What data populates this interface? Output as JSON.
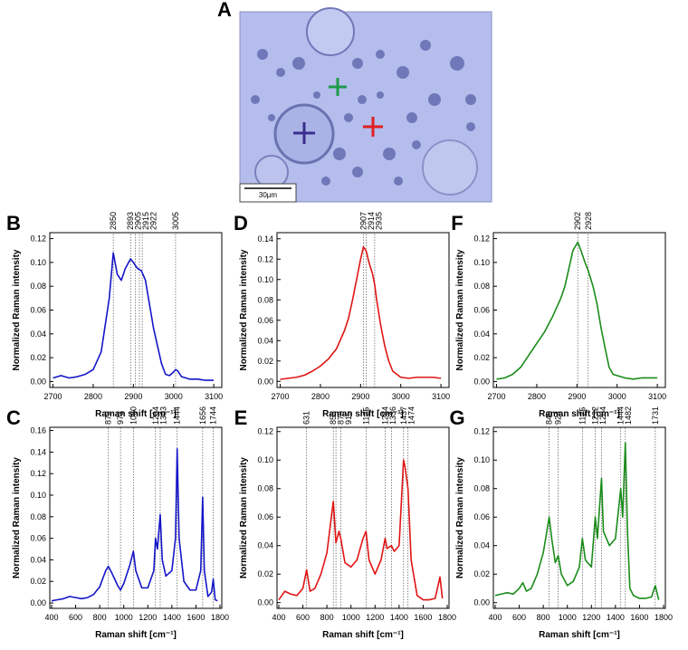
{
  "image": {
    "label": "A",
    "scale_bar": "30μm"
  },
  "chart_data": [
    {
      "type": "line",
      "panel": "B",
      "color": "#1515c8",
      "xlabel": "Raman shift [cm⁻¹]",
      "ylabel": "Normalized Raman intensity",
      "xlim": [
        2692,
        3120
      ],
      "ylim": [
        -0.005,
        0.125
      ],
      "xticks": [
        2700,
        2800,
        2900,
        3000,
        3100
      ],
      "yticks": [
        {
          "value": 0,
          "label": "0.00"
        },
        {
          "value": 0.02,
          "label": "0.02"
        },
        {
          "value": 0.04,
          "label": "0.04"
        },
        {
          "value": 0.06,
          "label": "0.06"
        },
        {
          "value": 0.08,
          "label": "0.08"
        },
        {
          "value": 0.1,
          "label": "0.10"
        },
        {
          "value": 0.12,
          "label": "0.12"
        }
      ],
      "peaks": [
        2850,
        2893,
        2905,
        2915,
        2922,
        3005
      ],
      "x": [
        2700,
        2720,
        2740,
        2760,
        2780,
        2800,
        2820,
        2840,
        2850,
        2860,
        2870,
        2880,
        2893,
        2900,
        2910,
        2920,
        2930,
        2940,
        2950,
        2960,
        2970,
        2980,
        2990,
        3000,
        3005,
        3010,
        3020,
        3040,
        3060,
        3080,
        3100
      ],
      "values": [
        0.003,
        0.005,
        0.003,
        0.004,
        0.006,
        0.01,
        0.025,
        0.07,
        0.108,
        0.09,
        0.085,
        0.095,
        0.103,
        0.1,
        0.095,
        0.093,
        0.085,
        0.065,
        0.045,
        0.03,
        0.015,
        0.006,
        0.005,
        0.008,
        0.01,
        0.009,
        0.004,
        0.002,
        0.002,
        0.001,
        0.001
      ]
    },
    {
      "type": "line",
      "panel": "D",
      "color": "#e01515",
      "xlabel": "Raman shift [cm⁻¹]",
      "ylabel": "Normalized Raman intensity",
      "xlim": [
        2692,
        3120
      ],
      "ylim": [
        -0.006,
        0.146
      ],
      "xticks": [
        2700,
        2800,
        2900,
        3000,
        3100
      ],
      "yticks": [
        {
          "value": 0,
          "label": "0.00"
        },
        {
          "value": 0.02,
          "label": "0.02"
        },
        {
          "value": 0.04,
          "label": "0.04"
        },
        {
          "value": 0.06,
          "label": "0.06"
        },
        {
          "value": 0.08,
          "label": "0.08"
        },
        {
          "value": 0.1,
          "label": "0.10"
        },
        {
          "value": 0.12,
          "label": "0.12"
        },
        {
          "value": 0.14,
          "label": "0.14"
        }
      ],
      "peaks": [
        2907,
        2914,
        2935
      ],
      "x": [
        2700,
        2720,
        2740,
        2760,
        2780,
        2800,
        2820,
        2840,
        2860,
        2870,
        2880,
        2890,
        2900,
        2907,
        2914,
        2920,
        2930,
        2935,
        2940,
        2950,
        2960,
        2970,
        2980,
        3000,
        3020,
        3040,
        3060,
        3080,
        3100
      ],
      "values": [
        0.002,
        0.003,
        0.004,
        0.006,
        0.01,
        0.015,
        0.022,
        0.032,
        0.05,
        0.062,
        0.08,
        0.1,
        0.12,
        0.132,
        0.128,
        0.118,
        0.105,
        0.095,
        0.08,
        0.055,
        0.035,
        0.02,
        0.01,
        0.004,
        0.003,
        0.004,
        0.004,
        0.004,
        0.003
      ]
    },
    {
      "type": "line",
      "panel": "F",
      "color": "#1a8c1a",
      "xlabel": "Raman shift [cm⁻¹]",
      "ylabel": "Normalized Raman intensity",
      "xlim": [
        2692,
        3120
      ],
      "ylim": [
        -0.005,
        0.125
      ],
      "xticks": [
        2700,
        2800,
        2900,
        3000,
        3100
      ],
      "yticks": [
        {
          "value": 0,
          "label": "0.00"
        },
        {
          "value": 0.02,
          "label": "0.02"
        },
        {
          "value": 0.04,
          "label": "0.04"
        },
        {
          "value": 0.06,
          "label": "0.06"
        },
        {
          "value": 0.08,
          "label": "0.08"
        },
        {
          "value": 0.1,
          "label": "0.10"
        },
        {
          "value": 0.12,
          "label": "0.12"
        }
      ],
      "peaks": [
        2902,
        2928
      ],
      "x": [
        2700,
        2720,
        2740,
        2760,
        2780,
        2800,
        2820,
        2840,
        2860,
        2870,
        2880,
        2890,
        2902,
        2910,
        2920,
        2928,
        2940,
        2950,
        2960,
        2970,
        2980,
        2990,
        3000,
        3020,
        3040,
        3060,
        3080,
        3100
      ],
      "values": [
        0.002,
        0.003,
        0.006,
        0.012,
        0.022,
        0.032,
        0.042,
        0.055,
        0.07,
        0.08,
        0.095,
        0.11,
        0.117,
        0.11,
        0.1,
        0.093,
        0.08,
        0.065,
        0.045,
        0.028,
        0.012,
        0.006,
        0.005,
        0.003,
        0.002,
        0.003,
        0.003,
        0.003
      ]
    },
    {
      "type": "line",
      "panel": "C",
      "color": "#1515c8",
      "xlabel": "Raman shift [cm⁻¹]",
      "ylabel": "Normalized Raman intensity",
      "xlim": [
        385,
        1815
      ],
      "ylim": [
        -0.005,
        0.163
      ],
      "xticks": [
        400,
        600,
        800,
        1000,
        1200,
        1400,
        1600,
        1800
      ],
      "yticks": [
        {
          "value": 0,
          "label": "0.00"
        },
        {
          "value": 0.02,
          "label": "0.02"
        },
        {
          "value": 0.04,
          "label": "0.04"
        },
        {
          "value": 0.06,
          "label": "0.06"
        },
        {
          "value": 0.08,
          "label": "0.08"
        },
        {
          "value": 0.1,
          "label": "0.10"
        },
        {
          "value": 0.12,
          "label": "0.12"
        },
        {
          "value": 0.14,
          "label": "0.14"
        },
        {
          "value": 0.16,
          "label": "0.16"
        }
      ],
      "peaks": [
        872,
        973,
        1080,
        1264,
        1303,
        1444,
        1656,
        1744
      ],
      "x": [
        400,
        450,
        500,
        550,
        600,
        650,
        700,
        750,
        800,
        850,
        872,
        900,
        950,
        973,
        1000,
        1050,
        1080,
        1100,
        1150,
        1200,
        1250,
        1264,
        1280,
        1303,
        1320,
        1350,
        1400,
        1430,
        1444,
        1460,
        1500,
        1550,
        1600,
        1640,
        1656,
        1670,
        1700,
        1730,
        1744,
        1760,
        1780
      ],
      "values": [
        0.002,
        0.003,
        0.004,
        0.006,
        0.005,
        0.004,
        0.005,
        0.008,
        0.015,
        0.03,
        0.034,
        0.028,
        0.016,
        0.012,
        0.018,
        0.035,
        0.048,
        0.03,
        0.014,
        0.014,
        0.03,
        0.06,
        0.05,
        0.082,
        0.04,
        0.025,
        0.03,
        0.06,
        0.143,
        0.06,
        0.02,
        0.012,
        0.012,
        0.03,
        0.098,
        0.03,
        0.006,
        0.01,
        0.022,
        0.003,
        0.002
      ]
    },
    {
      "type": "line",
      "panel": "E",
      "color": "#e01515",
      "xlabel": "Raman shift [cm⁻¹]",
      "ylabel": "Normalized Raman intensity",
      "xlim": [
        385,
        1815
      ],
      "ylim": [
        -0.004,
        0.123
      ],
      "xticks": [
        400,
        600,
        800,
        1000,
        1200,
        1400,
        1600,
        1800
      ],
      "yticks": [
        {
          "value": 0,
          "label": "0.00"
        },
        {
          "value": 0.02,
          "label": "0.02"
        },
        {
          "value": 0.04,
          "label": "0.04"
        },
        {
          "value": 0.06,
          "label": "0.06"
        },
        {
          "value": 0.08,
          "label": "0.08"
        },
        {
          "value": 0.1,
          "label": "0.10"
        },
        {
          "value": 0.12,
          "label": "0.12"
        }
      ],
      "peaks": [
        631,
        853,
        875,
        915,
        1125,
        1284,
        1336,
        1437,
        1474
      ],
      "x": [
        400,
        450,
        500,
        550,
        600,
        631,
        660,
        700,
        750,
        800,
        853,
        875,
        900,
        915,
        950,
        1000,
        1050,
        1100,
        1125,
        1150,
        1200,
        1250,
        1284,
        1300,
        1336,
        1360,
        1400,
        1437,
        1450,
        1474,
        1500,
        1550,
        1600,
        1650,
        1700,
        1740,
        1760
      ],
      "values": [
        0.002,
        0.008,
        0.006,
        0.005,
        0.01,
        0.023,
        0.008,
        0.01,
        0.02,
        0.035,
        0.071,
        0.042,
        0.05,
        0.045,
        0.028,
        0.025,
        0.03,
        0.045,
        0.05,
        0.03,
        0.02,
        0.03,
        0.045,
        0.038,
        0.04,
        0.036,
        0.04,
        0.1,
        0.095,
        0.08,
        0.03,
        0.005,
        0.002,
        0.002,
        0.003,
        0.018,
        0.003
      ]
    },
    {
      "type": "line",
      "panel": "G",
      "color": "#1a8c1a",
      "xlabel": "Raman shift [cm⁻¹]",
      "ylabel": "Normalized Raman intensity",
      "xlim": [
        385,
        1815
      ],
      "ylim": [
        -0.004,
        0.123
      ],
      "xticks": [
        400,
        600,
        800,
        1000,
        1200,
        1400,
        1600,
        1800
      ],
      "yticks": [
        {
          "value": 0,
          "label": "0.00"
        },
        {
          "value": 0.02,
          "label": "0.02"
        },
        {
          "value": 0.04,
          "label": "0.04"
        },
        {
          "value": 0.06,
          "label": "0.06"
        },
        {
          "value": 0.08,
          "label": "0.08"
        },
        {
          "value": 0.1,
          "label": "0.10"
        },
        {
          "value": 0.12,
          "label": "0.12"
        }
      ],
      "peaks": [
        849,
        924,
        1125,
        1232,
        1284,
        1444,
        1482,
        1731
      ],
      "x": [
        400,
        450,
        500,
        550,
        600,
        630,
        660,
        700,
        750,
        800,
        849,
        870,
        900,
        924,
        950,
        1000,
        1050,
        1100,
        1125,
        1150,
        1200,
        1232,
        1250,
        1284,
        1300,
        1350,
        1400,
        1444,
        1460,
        1482,
        1500,
        1520,
        1550,
        1600,
        1650,
        1700,
        1731,
        1760
      ],
      "values": [
        0.005,
        0.006,
        0.007,
        0.006,
        0.01,
        0.014,
        0.008,
        0.01,
        0.02,
        0.035,
        0.06,
        0.045,
        0.028,
        0.033,
        0.02,
        0.012,
        0.015,
        0.025,
        0.045,
        0.03,
        0.025,
        0.06,
        0.045,
        0.087,
        0.05,
        0.04,
        0.045,
        0.08,
        0.06,
        0.112,
        0.05,
        0.01,
        0.005,
        0.003,
        0.003,
        0.004,
        0.012,
        0.002
      ]
    }
  ]
}
